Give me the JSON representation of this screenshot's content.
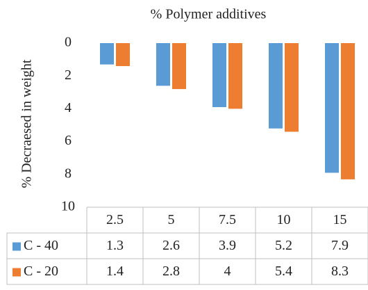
{
  "chart_data": {
    "type": "bar",
    "title": "% Polymer additives",
    "y_label": "% Decraesed in weight",
    "categories": [
      "2.5",
      "5",
      "7.5",
      "10",
      "15"
    ],
    "series": [
      {
        "name": "C - 40",
        "color": "#5b9bd5",
        "values": [
          1.3,
          2.6,
          3.9,
          5.2,
          7.9
        ]
      },
      {
        "name": "C - 20",
        "color": "#ed7d31",
        "values": [
          1.4,
          2.8,
          4,
          5.4,
          8.3
        ]
      }
    ],
    "ylim": [
      0,
      10
    ],
    "yticks": [
      0,
      2,
      4,
      6,
      8,
      10
    ],
    "y_inverted": true,
    "grid": false,
    "data_table": true
  }
}
